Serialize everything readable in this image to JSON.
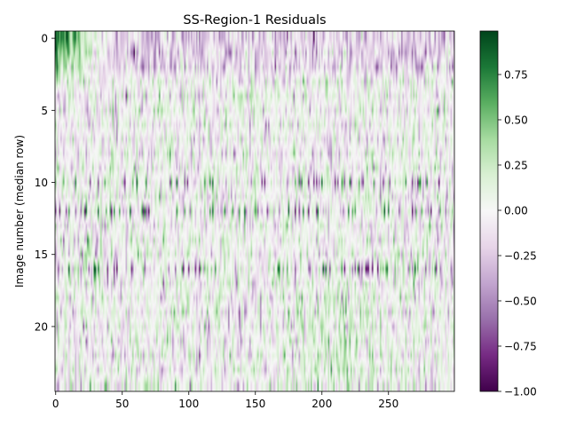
{
  "chart_data": {
    "type": "heatmap",
    "title": "SS-Region-1 Residuals",
    "xlabel": "",
    "ylabel": "Image number (median row)",
    "x_range": [
      0,
      299
    ],
    "y_range": [
      0,
      24
    ],
    "y_inverted": true,
    "x_ticks": [
      0,
      50,
      100,
      150,
      200,
      250
    ],
    "y_ticks": [
      0,
      5,
      10,
      15,
      20
    ],
    "n_rows": 25,
    "n_cols": 300,
    "colormap": "PRGn",
    "colorbar": {
      "min": -1.0,
      "max": 0.99,
      "ticks": [
        -1.0,
        -0.75,
        -0.5,
        -0.25,
        0.0,
        0.25,
        0.5,
        0.75
      ],
      "tick_labels": [
        "−1.00",
        "−0.75",
        "−0.50",
        "−0.25",
        "0.00",
        "0.25",
        "0.50",
        "0.75"
      ]
    },
    "row_features": [
      {
        "rows": [
          0,
          1
        ],
        "description_value": "strong positive residuals 0.6-0.99 near columns 0-25"
      },
      {
        "rows": [
          0,
          1,
          2
        ],
        "mean_value": -0.25
      },
      {
        "rows": [
          10,
          12,
          16
        ],
        "amplitude": 0.95
      }
    ],
    "mean_value": 0.0,
    "noise_amplitude": 0.25
  }
}
